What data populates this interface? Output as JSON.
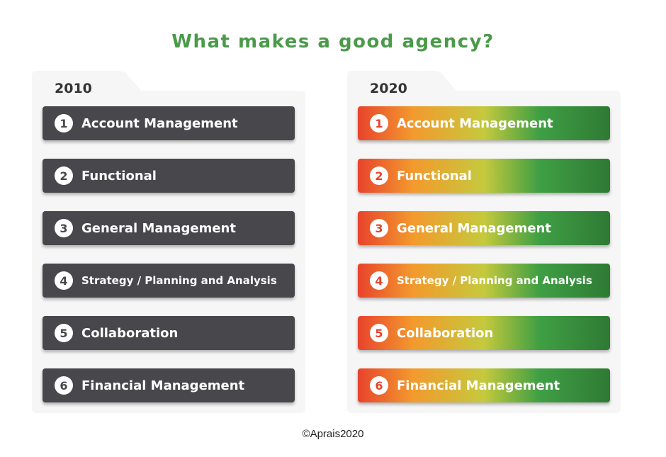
{
  "title": "What makes a good agency?",
  "copyright": "©Aprais2020",
  "colors": {
    "title_green": "#4a9a4a",
    "bar_dark": "#47474c",
    "gradient_red": "#e8432d",
    "gradient_orange": "#f39a2d",
    "gradient_yellow": "#c5c93d",
    "gradient_green": "#3f9f44"
  },
  "columns": [
    {
      "year": "2010",
      "items": [
        {
          "number": "1",
          "label": "Account Management"
        },
        {
          "number": "2",
          "label": "Functional"
        },
        {
          "number": "3",
          "label": "General Management"
        },
        {
          "number": "4",
          "label": "Strategy / Planning and Analysis"
        },
        {
          "number": "5",
          "label": "Collaboration"
        },
        {
          "number": "6",
          "label": "Financial Management"
        }
      ]
    },
    {
      "year": "2020",
      "items": [
        {
          "number": "1",
          "label": "Account Management"
        },
        {
          "number": "2",
          "label": "Functional"
        },
        {
          "number": "3",
          "label": "General Management"
        },
        {
          "number": "4",
          "label": "Strategy / Planning and Analysis"
        },
        {
          "number": "5",
          "label": "Collaboration"
        },
        {
          "number": "6",
          "label": "Financial Management"
        }
      ]
    }
  ]
}
